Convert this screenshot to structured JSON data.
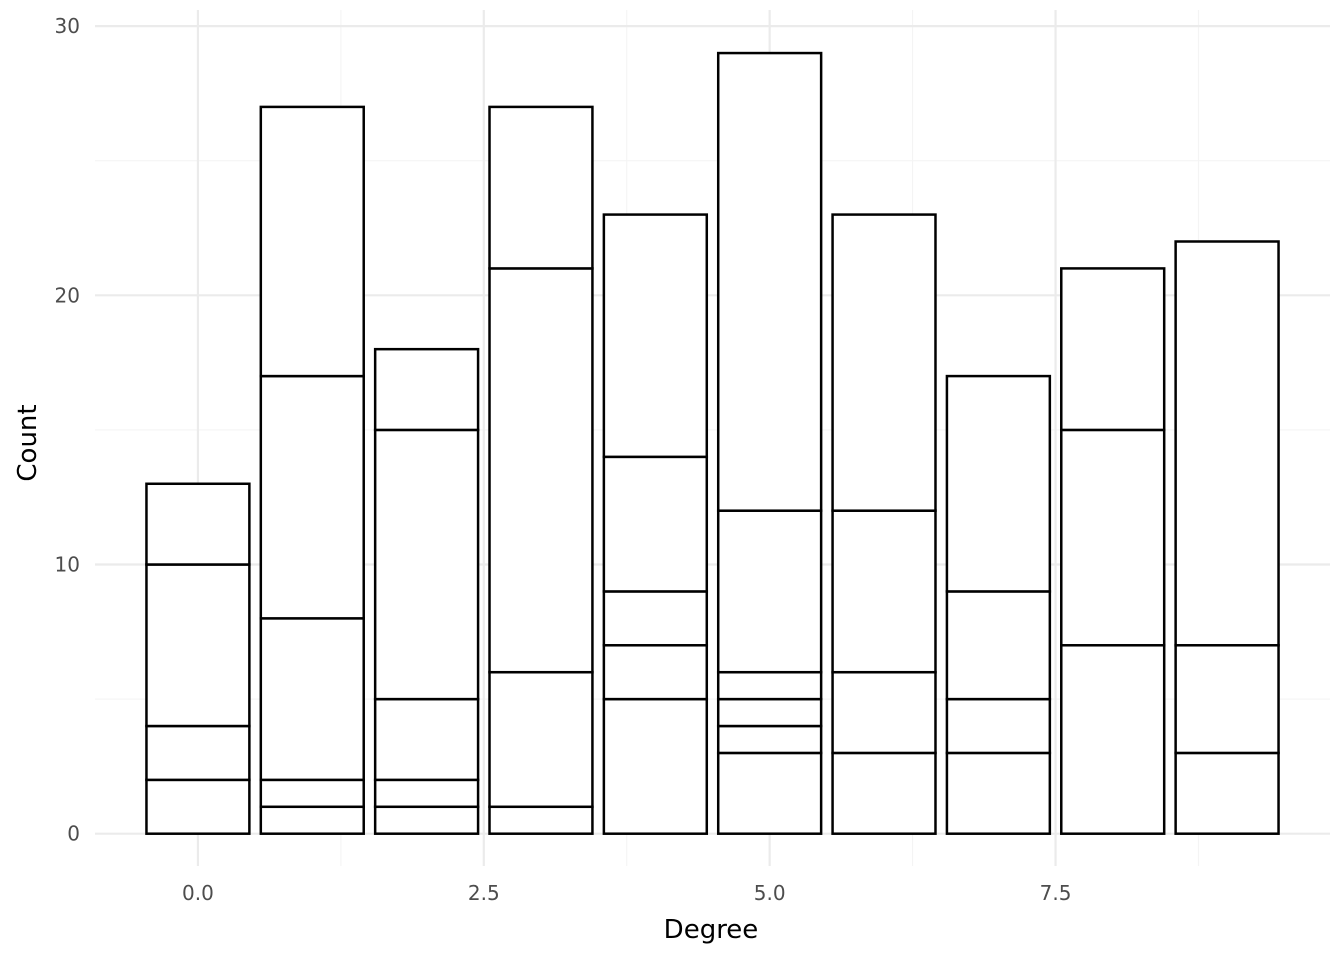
{
  "chart_data": {
    "type": "bar",
    "stacked": true,
    "title": "",
    "xlabel": "Degree",
    "ylabel": "Count",
    "xlim": [
      -0.9,
      9.9
    ],
    "ylim": [
      -1.2,
      30.6
    ],
    "x_ticks": [
      0.0,
      2.5,
      5.0,
      7.5
    ],
    "x_tick_labels": [
      "0.0",
      "2.5",
      "5.0",
      "7.5"
    ],
    "y_ticks": [
      0,
      10,
      20,
      30
    ],
    "y_tick_labels": [
      "0",
      "10",
      "20",
      "30"
    ],
    "bar_width": 0.9,
    "grid": true,
    "fill_color": "#ffffff",
    "edge_color": "#000000",
    "bars": [
      {
        "x": 0,
        "segments": [
          2,
          2,
          6,
          3
        ],
        "total": 13
      },
      {
        "x": 1,
        "segments": [
          1,
          1,
          6,
          9,
          10
        ],
        "total": 27
      },
      {
        "x": 2,
        "segments": [
          1,
          1,
          3,
          10,
          3
        ],
        "total": 18
      },
      {
        "x": 3,
        "segments": [
          1,
          5,
          15,
          6
        ],
        "total": 27
      },
      {
        "x": 4,
        "segments": [
          5,
          2,
          2,
          5,
          9
        ],
        "total": 23
      },
      {
        "x": 5,
        "segments": [
          3,
          1,
          1,
          1,
          6,
          17
        ],
        "total": 29
      },
      {
        "x": 6,
        "segments": [
          3,
          3,
          6,
          11
        ],
        "total": 23
      },
      {
        "x": 7,
        "segments": [
          3,
          2,
          4,
          8
        ],
        "total": 17
      },
      {
        "x": 8,
        "segments": [
          7,
          8,
          6
        ],
        "total": 21
      },
      {
        "x": 9,
        "segments": [
          3,
          4,
          15
        ],
        "total": 22
      }
    ]
  }
}
